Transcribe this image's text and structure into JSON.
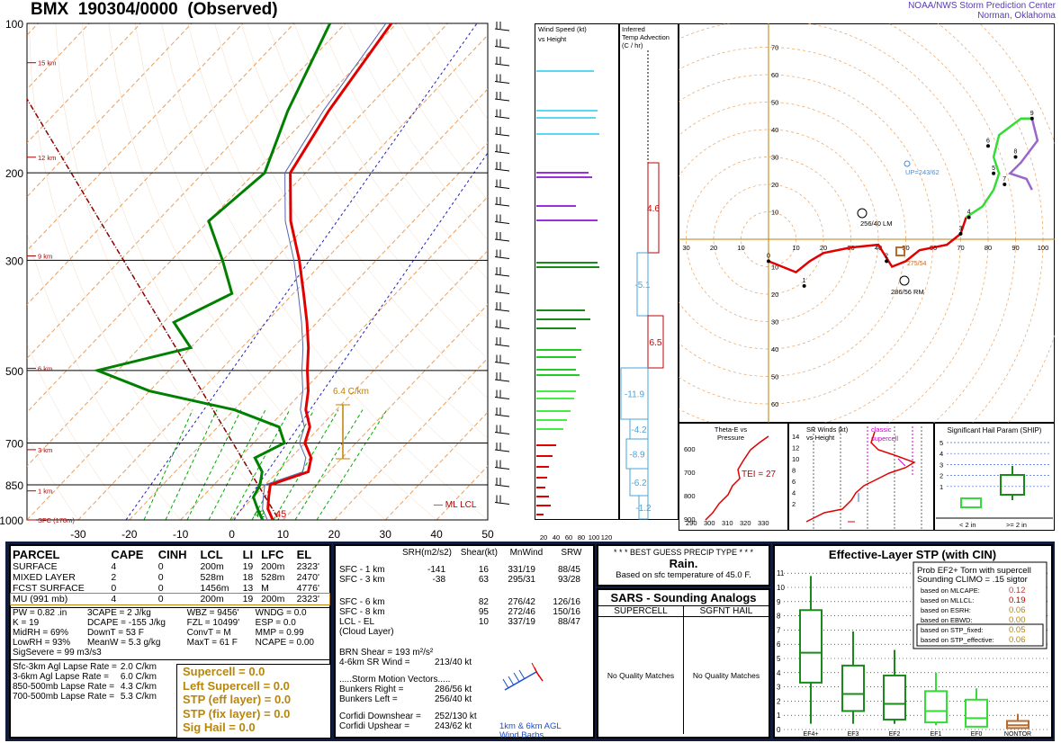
{
  "header": {
    "station": "BMX",
    "datetime": "190304/0000",
    "status": "(Observed)",
    "credit_line1": "NOAA/NWS Storm Prediction Center",
    "credit_line2": "Norman, Oklahoma"
  },
  "chart_data": [
    {
      "type": "line",
      "name": "skew-t",
      "y_axis_pressure_labels": [
        "100",
        "200",
        "300",
        "500",
        "700",
        "850",
        "1000"
      ],
      "x_axis_temp_labels": [
        "-30",
        "-20",
        "-10",
        "0",
        "10",
        "20",
        "30",
        "40",
        "50"
      ],
      "height_labels": [
        "15 km",
        "12 km",
        "9 km",
        "6 km",
        "3 km",
        "1 km",
        "SFC (178m)"
      ],
      "surface_temp": "45",
      "surface_dewpoint": "42",
      "lapse_annotation": "6.4 C/km",
      "lcl_label": "ML LCL",
      "temperature_profile": [
        [
          1000,
          8
        ],
        [
          950,
          5
        ],
        [
          900,
          3
        ],
        [
          850,
          1
        ],
        [
          800,
          6
        ],
        [
          750,
          4
        ],
        [
          700,
          0
        ],
        [
          650,
          -2
        ],
        [
          600,
          -6
        ],
        [
          550,
          -9
        ],
        [
          500,
          -13
        ],
        [
          450,
          -17
        ],
        [
          400,
          -22
        ],
        [
          350,
          -28
        ],
        [
          300,
          -35
        ],
        [
          250,
          -44
        ],
        [
          200,
          -53
        ],
        [
          150,
          -57
        ],
        [
          100,
          -61
        ]
      ],
      "dewpoint_profile": [
        [
          1000,
          6
        ],
        [
          950,
          3
        ],
        [
          900,
          0
        ],
        [
          850,
          -1
        ],
        [
          800,
          -3
        ],
        [
          750,
          -7
        ],
        [
          700,
          -4
        ],
        [
          650,
          -8
        ],
        [
          600,
          -20
        ],
        [
          550,
          -40
        ],
        [
          500,
          -54
        ],
        [
          450,
          -40
        ],
        [
          400,
          -48
        ],
        [
          350,
          -42
        ],
        [
          300,
          -50
        ],
        [
          250,
          -60
        ],
        [
          200,
          -58
        ],
        [
          150,
          -65
        ],
        [
          100,
          -73
        ]
      ]
    },
    {
      "type": "bar",
      "name": "wind-speed",
      "title": "Wind Speed (kt) vs Height",
      "x_tick_labels": [
        "20",
        "40",
        "60",
        "80",
        "100",
        "120"
      ]
    },
    {
      "type": "bar",
      "name": "temp-advection",
      "title": "Inferred Temp Advection (C / hr)",
      "values_labels": [
        "4.6",
        "-5.1",
        "6.5",
        "-11.9",
        "-4.2",
        "-8.9",
        "-6.2",
        "-1.2"
      ]
    },
    {
      "type": "line",
      "name": "hodograph",
      "axis_labels": [
        "10",
        "20",
        "30",
        "40",
        "50",
        "60",
        "70",
        "80",
        "90",
        "100",
        "110"
      ],
      "storm_labels": [
        "UP=243/62",
        "256/40 LM",
        "286/56 RM",
        "275/54"
      ],
      "points": [
        [
          0,
          -10
        ],
        [
          1,
          -20
        ],
        [
          2,
          -10
        ],
        [
          3,
          0
        ],
        [
          4,
          8
        ],
        [
          5,
          23
        ],
        [
          6,
          38
        ],
        [
          7,
          20
        ],
        [
          8,
          30
        ],
        [
          9,
          44
        ]
      ]
    },
    {
      "type": "line",
      "name": "theta-e",
      "title": "Theta-E vs Pressure",
      "annotation": "TEI = 27",
      "x_tick_labels": [
        "290",
        "300",
        "310",
        "320",
        "330"
      ],
      "y_tick_labels": [
        "600",
        "700",
        "800",
        "900"
      ]
    },
    {
      "type": "line",
      "name": "sr-winds",
      "title": "SR Winds (kt) vs Height",
      "annotation": "classic supercell",
      "y_tick_labels": [
        "14",
        "12",
        "10",
        "8",
        "6",
        "4",
        "2"
      ]
    },
    {
      "type": "bar",
      "name": "ship",
      "title": "Significant Hail Param (SHIP)",
      "y_tick_labels": [
        "5",
        "4",
        "3",
        "2",
        "1"
      ],
      "legend": [
        "< 2 in",
        ">= 2 in"
      ]
    },
    {
      "type": "bar",
      "name": "effective-stp",
      "title": "Effective-Layer STP (with CIN)",
      "categories": [
        "EF4+",
        "EF3",
        "EF2",
        "EF1",
        "EF0",
        "NONTOR"
      ],
      "y_tick_labels": [
        "0",
        "1",
        "2",
        "3",
        "4",
        "5",
        "6",
        "7",
        "8",
        "9",
        "10",
        "11"
      ]
    }
  ],
  "parcel_table": {
    "headers": [
      "PARCEL",
      "CAPE",
      "CINH",
      "LCL",
      "LI",
      "LFC",
      "EL"
    ],
    "rows": [
      [
        "SURFACE",
        "4",
        "0",
        "200m",
        "19",
        "200m",
        "2323'"
      ],
      [
        "MIXED LAYER",
        "2",
        "0",
        "528m",
        "18",
        "528m",
        "2470'"
      ],
      [
        "FCST SURFACE",
        "0",
        "0",
        "1456m",
        "13",
        "M",
        "4776'"
      ],
      [
        "MU   (991 mb)",
        "4",
        "0",
        "200m",
        "19",
        "200m",
        "2323'"
      ]
    ]
  },
  "thermo_params": [
    [
      "PW = 0.82 .in",
      "3CAPE = 2 J/kg",
      "WBZ = 9456'",
      "WNDG = 0.0"
    ],
    [
      "K = 19",
      "DCAPE = -155 J/kg",
      "FZL = 10499'",
      "ESP = 0.0"
    ],
    [
      "MidRH = 69%",
      "DownT = 53 F",
      "ConvT = M",
      "MMP = 0.99"
    ],
    [
      "LowRH = 93%",
      "MeanW = 5.3 g/kg",
      "MaxT = 61 F",
      "NCAPE = 0.00"
    ]
  ],
  "sig_severe": "SigSevere = 99 m3/s3",
  "lapse_rates": [
    [
      "Sfc-3km Agl Lapse Rate =",
      "2.0 C/km"
    ],
    [
      "3-6km Agl Lapse Rate =",
      "6.0 C/km"
    ],
    [
      "850-500mb Lapse Rate =",
      "4.3 C/km"
    ],
    [
      "700-500mb Lapse Rate =",
      "5.3 C/km"
    ]
  ],
  "composite": [
    "Supercell = 0.0",
    "Left Supercell = 0.0",
    "STP (eff layer) = 0.0",
    "STP (fix layer) = 0.0",
    "Sig Hail = 0.0"
  ],
  "kinematics": {
    "headers": [
      "SRH(m2/s2)",
      "Shear(kt)",
      "MnWind",
      "SRW"
    ],
    "rows": [
      [
        "SFC - 1 km",
        "-141",
        "16",
        "331/19",
        "88/45"
      ],
      [
        "SFC - 3 km",
        "-38",
        "63",
        "295/31",
        "93/28"
      ],
      [
        "SFC - 6 km",
        "",
        "82",
        "276/42",
        "126/16"
      ],
      [
        "SFC - 8 km",
        "",
        "95",
        "272/46",
        "150/16"
      ],
      [
        "LCL - EL (Cloud Layer)",
        "",
        "10",
        "337/19",
        "88/47"
      ]
    ],
    "brn_shear": "BRN Shear = 193 m²/s²",
    "shear_vector": "4-6km SR Wind =",
    "shear_vector_val": "213/40 kt",
    "motion_title": ".....Storm Motion Vectors.....",
    "motions": [
      [
        "Bunkers Right =",
        "286/56 kt"
      ],
      [
        "Bunkers Left =",
        "256/40 kt"
      ],
      [
        "Corfidi Downshear =",
        "252/130 kt"
      ],
      [
        "Corfidi Upshear =",
        "243/62 kt"
      ]
    ],
    "barb_caption1": "1km & 6km AGL",
    "barb_caption2": "Wind Barbs"
  },
  "precip": {
    "title": "* * * BEST GUESS PRECIP TYPE * * *",
    "value": "Rain.",
    "note": "Based on sfc temperature of 45.0 F."
  },
  "sars": {
    "title": "SARS - Sounding Analogs",
    "col1": "SUPERCELL",
    "col2": "SGFNT HAIL",
    "none1": "No Quality Matches",
    "none2": "No Quality Matches"
  },
  "stp_panel": {
    "prob_title1": "Prob EF2+ Torn with supercell",
    "prob_title2": "Sounding CLIMO = .15 sigtor",
    "rows": [
      [
        "based on MLCAPE:",
        "0.12"
      ],
      [
        "based on MLLCL:",
        "0.19"
      ],
      [
        "based on ESRH:",
        "0.06"
      ],
      [
        "based on EBWD:",
        "0.00"
      ],
      [
        "based on STP_fixed:",
        "0.05"
      ],
      [
        "based on STP_effective:",
        "0.06"
      ]
    ]
  },
  "colors": {
    "temperature": "#e00000",
    "dewpoint": "#008000",
    "isotherm": "#e8a060",
    "mixing_ratio": "#00aa00",
    "dry_adiabat": "#d88030",
    "bg_panel": "#101c3c"
  }
}
